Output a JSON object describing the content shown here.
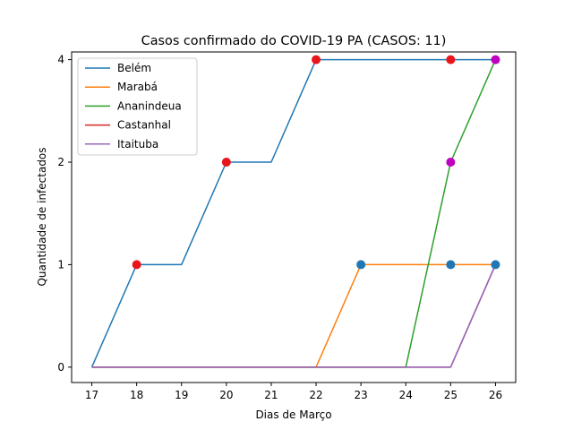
{
  "chart_data": {
    "type": "line",
    "title": "Casos confirmado do COVID-19 PA (CASOS: 11)",
    "xlabel": "Dias de Março",
    "ylabel": "Quantidade de infectados",
    "x": [
      17,
      18,
      19,
      20,
      21,
      22,
      23,
      24,
      25,
      26
    ],
    "xlim": [
      16.55,
      26.45
    ],
    "yticks": [
      0,
      1,
      2,
      4
    ],
    "ylim": [
      -0.15,
      4.15
    ],
    "legend_position": "top-left",
    "grid": false,
    "series": [
      {
        "name": "Belém",
        "color": "#1f77b4",
        "values": [
          0,
          1,
          1,
          2,
          2,
          4,
          4,
          4,
          4,
          4
        ]
      },
      {
        "name": "Marabá",
        "color": "#ff7f0e",
        "values": [
          0,
          0,
          0,
          0,
          0,
          0,
          1,
          1,
          1,
          1
        ]
      },
      {
        "name": "Ananindeua",
        "color": "#2ca02c",
        "values": [
          0,
          0,
          0,
          0,
          0,
          0,
          0,
          0,
          2,
          4
        ]
      },
      {
        "name": "Castanhal",
        "color": "#d62728",
        "values": [
          0,
          0,
          0,
          0,
          0,
          0,
          0,
          0,
          0,
          1
        ]
      },
      {
        "name": "Itaituba",
        "color": "#9467bd",
        "values": [
          0,
          0,
          0,
          0,
          0,
          0,
          0,
          0,
          0,
          1
        ]
      }
    ],
    "markers": [
      {
        "x": 18,
        "y": 1,
        "color": "#e8161b"
      },
      {
        "x": 20,
        "y": 2,
        "color": "#e8161b"
      },
      {
        "x": 22,
        "y": 4,
        "color": "#e8161b"
      },
      {
        "x": 25,
        "y": 4,
        "color": "#e8161b"
      },
      {
        "x": 23,
        "y": 1,
        "color": "#1f77b4"
      },
      {
        "x": 25,
        "y": 1,
        "color": "#1f77b4"
      },
      {
        "x": 26,
        "y": 1,
        "color": "#1f77b4"
      },
      {
        "x": 25,
        "y": 2,
        "color": "#c000c0"
      },
      {
        "x": 26,
        "y": 4,
        "color": "#c000c0"
      }
    ]
  }
}
